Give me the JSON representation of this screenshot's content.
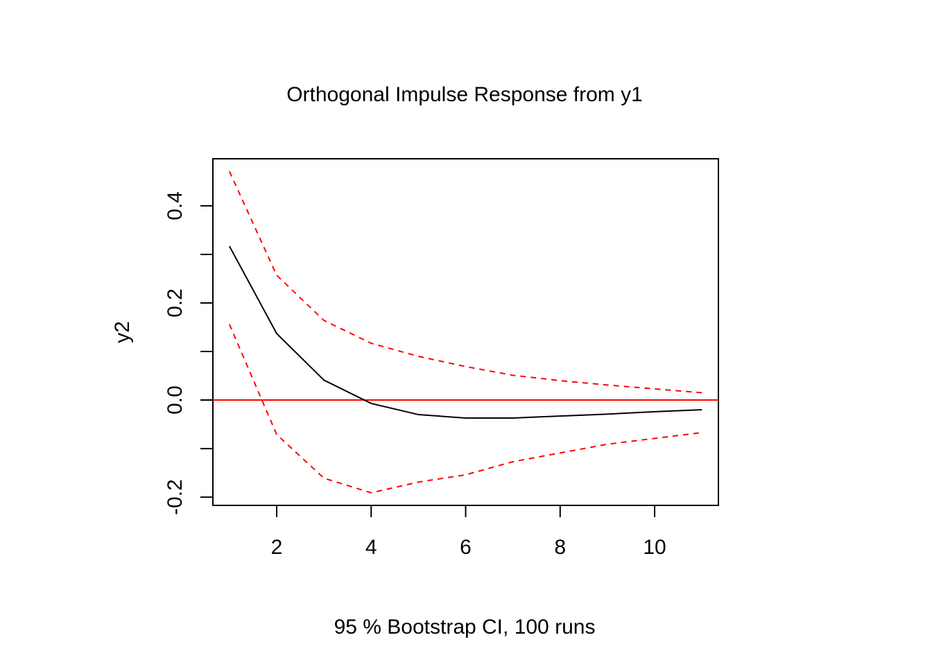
{
  "chart_data": {
    "type": "line",
    "title": "Orthogonal Impulse Response from y1",
    "xlabel": "95 % Bootstrap CI,  100 runs",
    "ylabel": "y2",
    "xlim": [
      0.65,
      11.35
    ],
    "ylim": [
      -0.217,
      0.497
    ],
    "x_ticks": [
      2,
      4,
      6,
      8,
      10
    ],
    "x_tick_labels": [
      "2",
      "4",
      "6",
      "8",
      "10"
    ],
    "y_ticks": [
      -0.2,
      -0.1,
      0.0,
      0.1,
      0.2,
      0.3,
      0.4
    ],
    "y_tick_labels": [
      "-0.2",
      "",
      "0.0",
      "",
      "0.2",
      "",
      "0.4"
    ],
    "grid": false,
    "x": [
      1,
      2,
      3,
      4,
      5,
      6,
      7,
      8,
      9,
      10,
      11
    ],
    "series": [
      {
        "role": "response",
        "color": "#000000",
        "dash": false,
        "values": [
          0.317,
          0.137,
          0.041,
          -0.007,
          -0.03,
          -0.037,
          -0.037,
          -0.033,
          -0.029,
          -0.024,
          -0.02
        ]
      },
      {
        "role": "upper",
        "color": "#ff0000",
        "dash": true,
        "values": [
          0.471,
          0.257,
          0.164,
          0.117,
          0.09,
          0.069,
          0.051,
          0.04,
          0.031,
          0.023,
          0.015
        ]
      },
      {
        "role": "lower",
        "color": "#ff0000",
        "dash": true,
        "values": [
          0.156,
          -0.071,
          -0.161,
          -0.191,
          -0.169,
          -0.154,
          -0.127,
          -0.109,
          -0.091,
          -0.079,
          -0.067
        ]
      }
    ],
    "reference_line": {
      "y": 0,
      "color": "#ff0000"
    }
  }
}
